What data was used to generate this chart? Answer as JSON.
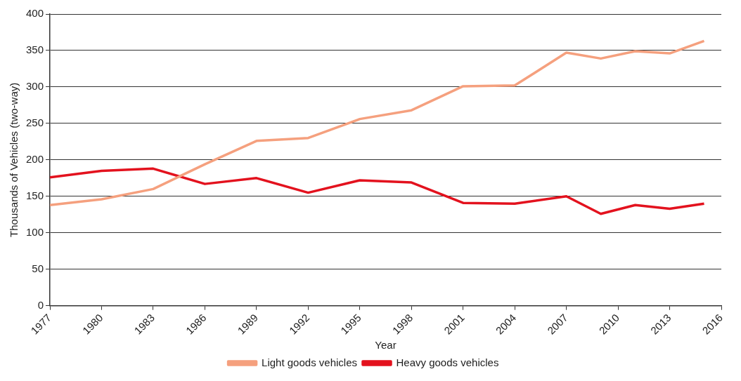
{
  "chart_data": {
    "type": "line",
    "xlabel": "Year",
    "ylabel": "Thousands of Vehicles (two-way)",
    "xlim": [
      1977,
      2016
    ],
    "xticks": [
      1977,
      1980,
      1983,
      1986,
      1989,
      1992,
      1995,
      1998,
      2001,
      2004,
      2007,
      2010,
      2013,
      2016
    ],
    "ylim": [
      0,
      400
    ],
    "yticks": [
      0,
      50,
      100,
      150,
      200,
      250,
      300,
      350,
      400
    ],
    "x": [
      1977,
      1980,
      1983,
      1986,
      1989,
      1992,
      1995,
      1998,
      2001,
      2004,
      2007,
      2009,
      2011,
      2013,
      2015
    ],
    "series": [
      {
        "name": "Light goods vehicles",
        "color": "#f5a07e",
        "values": [
          138,
          146,
          160,
          194,
          226,
          230,
          256,
          268,
          301,
          302,
          347,
          339,
          349,
          346,
          363
        ]
      },
      {
        "name": "Heavy goods vehicles",
        "color": "#e3121e",
        "values": [
          176,
          185,
          188,
          167,
          175,
          155,
          172,
          169,
          141,
          140,
          150,
          126,
          138,
          133,
          140
        ]
      }
    ],
    "grid": "y",
    "legend": "bottom",
    "marker": "none",
    "line_style": "solid"
  }
}
